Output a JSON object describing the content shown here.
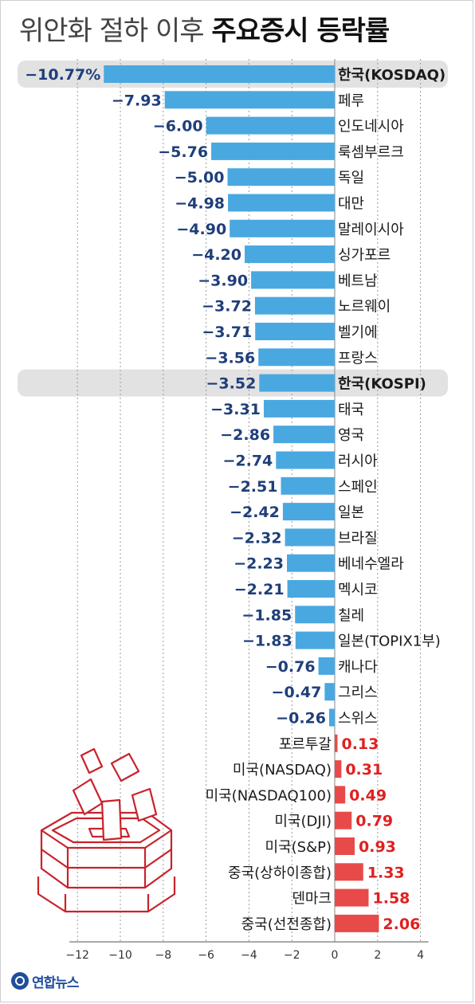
{
  "title": {
    "prefix": "위안화 절하 이후",
    "emphasis": "주요증시 등락률"
  },
  "logo": {
    "text": "연합뉴스"
  },
  "colors": {
    "negative": "#4aa8e0",
    "negative_label": "#1f3f7a",
    "positive": "#e84a4a",
    "positive_label": "#e02020",
    "highlight_band": "#e2e2e2",
    "grid": "#9a9a9a",
    "illustration": "#c8232c"
  },
  "chart_data": {
    "type": "bar",
    "orientation": "horizontal",
    "title": "위안화 절하 이후 주요증시 등락률",
    "xlim": [
      -12,
      4
    ],
    "x_ticks": [
      "−12",
      "−10",
      "−8",
      "−6",
      "−4",
      "−2",
      "0",
      "2",
      "4"
    ],
    "highlighted": [
      "한국(KOSDAQ)",
      "한국(KOSPI)"
    ],
    "categories": [
      "한국(KOSDAQ)",
      "페루",
      "인도네시아",
      "룩셈부르크",
      "독일",
      "대만",
      "말레이시아",
      "싱가포르",
      "베트남",
      "노르웨이",
      "벨기에",
      "프랑스",
      "한국(KOSPI)",
      "태국",
      "영국",
      "러시아",
      "스페인",
      "일본",
      "브라질",
      "베네수엘라",
      "멕시코",
      "칠레",
      "일본(TOPIX1부)",
      "캐나다",
      "그리스",
      "스위스",
      "포르투갈",
      "미국(NASDAQ)",
      "미국(NASDAQ100)",
      "미국(DJI)",
      "미국(S&P)",
      "중국(상하이종합)",
      "덴마크",
      "중국(선전종합)"
    ],
    "values": [
      -10.77,
      -7.93,
      -6.0,
      -5.76,
      -5.0,
      -4.98,
      -4.9,
      -4.2,
      -3.9,
      -3.72,
      -3.71,
      -3.56,
      -3.52,
      -3.31,
      -2.86,
      -2.74,
      -2.51,
      -2.42,
      -2.32,
      -2.23,
      -2.21,
      -1.85,
      -1.83,
      -0.76,
      -0.47,
      -0.26,
      0.13,
      0.31,
      0.49,
      0.79,
      0.93,
      1.33,
      1.58,
      2.06
    ],
    "value_labels": [
      "−10.77%",
      "−7.93",
      "−6.00",
      "−5.76",
      "−5.00",
      "−4.98",
      "−4.90",
      "−4.20",
      "−3.90",
      "−3.72",
      "−3.71",
      "−3.56",
      "−3.52",
      "−3.31",
      "−2.86",
      "−2.74",
      "−2.51",
      "−2.42",
      "−2.32",
      "−2.23",
      "−2.21",
      "−1.85",
      "−1.83",
      "−0.76",
      "−0.47",
      "−0.26",
      "0.13",
      "0.31",
      "0.49",
      "0.79",
      "0.93",
      "1.33",
      "1.58",
      "2.06"
    ]
  }
}
